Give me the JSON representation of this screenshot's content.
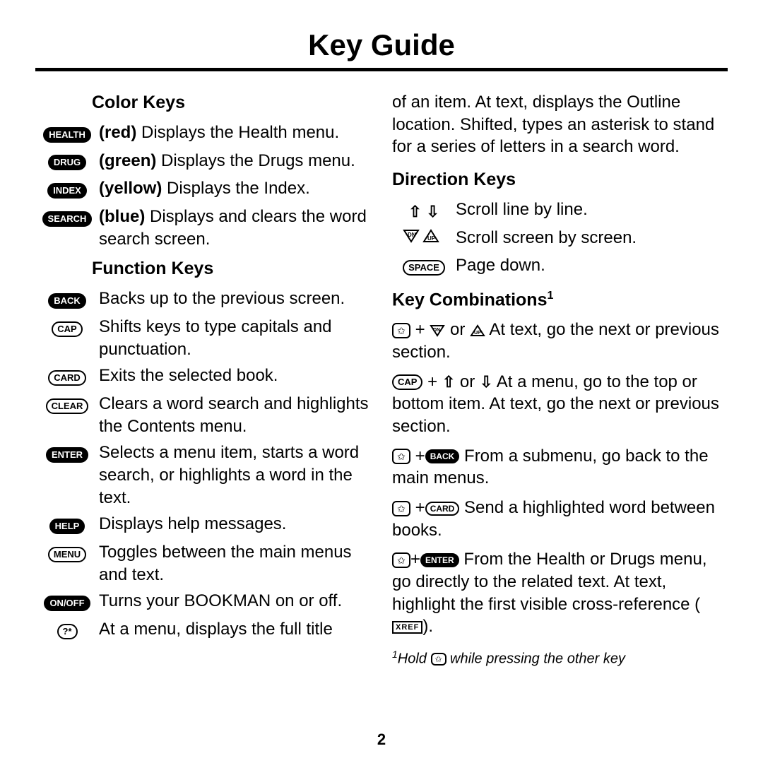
{
  "title": "Key Guide",
  "page_number": "2",
  "left": {
    "section1_title": "Color Keys",
    "color_keys": [
      {
        "key": "HEALTH",
        "filled": true,
        "tag": "(red)",
        "desc": " Displays the Health menu."
      },
      {
        "key": "DRUG",
        "filled": true,
        "tag": "(green)",
        "desc": " Displays the Drugs menu."
      },
      {
        "key": "INDEX",
        "filled": true,
        "tag": "(yellow)",
        "desc": " Displays the Index."
      },
      {
        "key": "SEARCH",
        "filled": true,
        "tag": "(blue)",
        "desc": " Displays and clears the word search screen."
      }
    ],
    "section2_title": "Function Keys",
    "function_keys": [
      {
        "key": "BACK",
        "filled": true,
        "desc": "Backs up to the previous screen."
      },
      {
        "key": "CAP",
        "filled": false,
        "desc": "Shifts keys to type capitals and punctuation."
      },
      {
        "key": "CARD",
        "filled": false,
        "desc": "Exits the selected book."
      },
      {
        "key": "CLEAR",
        "filled": false,
        "desc": "Clears a word search and highlights the Contents menu."
      },
      {
        "key": "ENTER",
        "filled": true,
        "desc": "Selects a menu item, starts a word search, or highlights a word in the text."
      },
      {
        "key": "HELP",
        "filled": true,
        "desc": "Displays help messages."
      },
      {
        "key": "MENU",
        "filled": false,
        "desc": "Toggles between the main menus and text."
      },
      {
        "key": "ON/OFF",
        "filled": true,
        "desc": "Turns your BOOKMAN on or off."
      },
      {
        "key": "?*",
        "filled": false,
        "desc": "At a menu, displays the full title"
      }
    ]
  },
  "right": {
    "cont_text": "of an item. At text, displays the Outline location. Shifted, types an asterisk to stand for a series of letters in a search word.",
    "dir_title": "Direction Keys",
    "dir_rows": {
      "r1": "Scroll line by line.",
      "r2": "Scroll screen by screen.",
      "r3_key": "SPACE",
      "r3": "Page down."
    },
    "combo_title": "Key Combinations",
    "combo_sup": "1",
    "c1": " At text, go the next or previous section.",
    "c2_key": "CAP",
    "c2": "  At a menu, go to the top or bottom item. At text, go the next or previous section.",
    "c3_key": "BACK",
    "c3": " From a submenu, go back to the main menus.",
    "c4_key": "CARD",
    "c4": "  Send a highlighted word be­tween books.",
    "c5_key": "ENTER",
    "c5": "   From the Health or Drugs menu, go directly to the related text. At text, highlight the first vis­ible cross-reference (",
    "c5_end": ").",
    "xref": "XREF",
    "footnote_sup": "1",
    "footnote_a": "Hold ",
    "footnote_b": " while pressing the other key"
  }
}
